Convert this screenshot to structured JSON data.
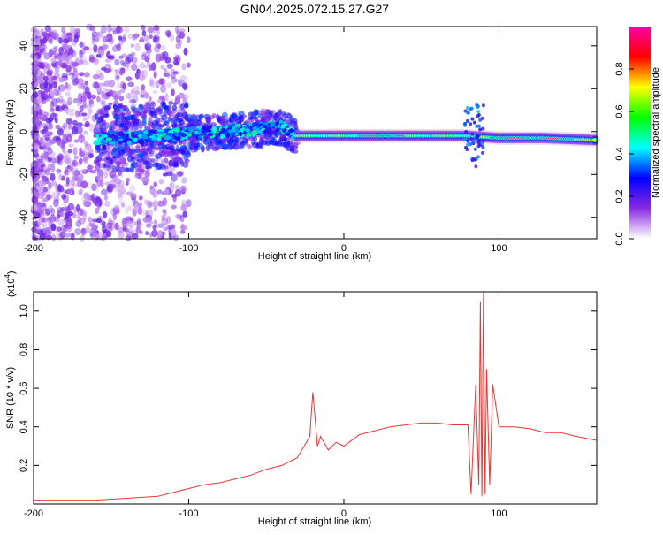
{
  "chart_data": [
    {
      "type": "heatmap",
      "title": "GN04.2025.072.15.27.G27",
      "xlabel": "Height of straight line (km)",
      "ylabel": "Frequency (Hz)",
      "xlim": [
        -200,
        163
      ],
      "ylim": [
        -50,
        49
      ],
      "x_ticks": [
        -200,
        -100,
        0,
        100
      ],
      "y_ticks": [
        -40,
        -20,
        0,
        20,
        40
      ],
      "grid": false,
      "colorbar": {
        "label": "Normalized spectral amplitude",
        "range": [
          0,
          1
        ],
        "ticks": [
          "0.0",
          "0.2",
          "0.4",
          "0.6",
          "0.8"
        ],
        "colormap": [
          "#ffffff",
          "#8a2be2",
          "#0000ff",
          "#00ffff",
          "#00ff00",
          "#ffff00",
          "#ff0000",
          "#ff00aa"
        ]
      },
      "ridge": {
        "x": [
          -160,
          -140,
          -120,
          -100,
          -80,
          -60,
          -40,
          -30,
          0,
          30,
          60,
          80,
          100,
          130,
          163
        ],
        "frequency_hz": [
          -3,
          -3,
          -2,
          -1,
          0,
          1,
          2,
          -2,
          -2,
          -2,
          -2,
          -2,
          -3,
          -3,
          -4
        ]
      }
    },
    {
      "type": "line",
      "title": "",
      "xlabel": "Height of straight line (km)",
      "ylabel": "SNR (10 * v/v)",
      "y_multiplier_label": "(x10",
      "y_multiplier_exp": "4",
      "xlim": [
        -200,
        163
      ],
      "ylim": [
        0,
        1.1
      ],
      "x_ticks": [
        -200,
        -100,
        0,
        100
      ],
      "y_ticks": [
        "0.2",
        "0.4",
        "0.6",
        "0.8",
        "1.0"
      ],
      "grid": false,
      "series": [
        {
          "color": "#ee3333",
          "x": [
            -200,
            -180,
            -160,
            -140,
            -120,
            -110,
            -100,
            -90,
            -80,
            -70,
            -60,
            -50,
            -40,
            -30,
            -22,
            -20,
            -17,
            -15,
            -10,
            -5,
            0,
            10,
            20,
            30,
            40,
            50,
            60,
            70,
            80,
            82,
            85,
            87,
            88,
            89,
            90,
            91,
            92,
            94,
            96,
            100,
            110,
            120,
            130,
            140,
            150,
            163
          ],
          "values": [
            0.02,
            0.02,
            0.02,
            0.03,
            0.04,
            0.06,
            0.08,
            0.1,
            0.11,
            0.13,
            0.15,
            0.18,
            0.2,
            0.24,
            0.35,
            0.58,
            0.3,
            0.35,
            0.28,
            0.32,
            0.3,
            0.36,
            0.38,
            0.4,
            0.41,
            0.42,
            0.42,
            0.41,
            0.41,
            0.05,
            0.62,
            0.1,
            1.05,
            0.04,
            1.1,
            0.05,
            0.7,
            0.1,
            0.62,
            0.4,
            0.4,
            0.39,
            0.37,
            0.37,
            0.35,
            0.33
          ]
        }
      ]
    }
  ]
}
